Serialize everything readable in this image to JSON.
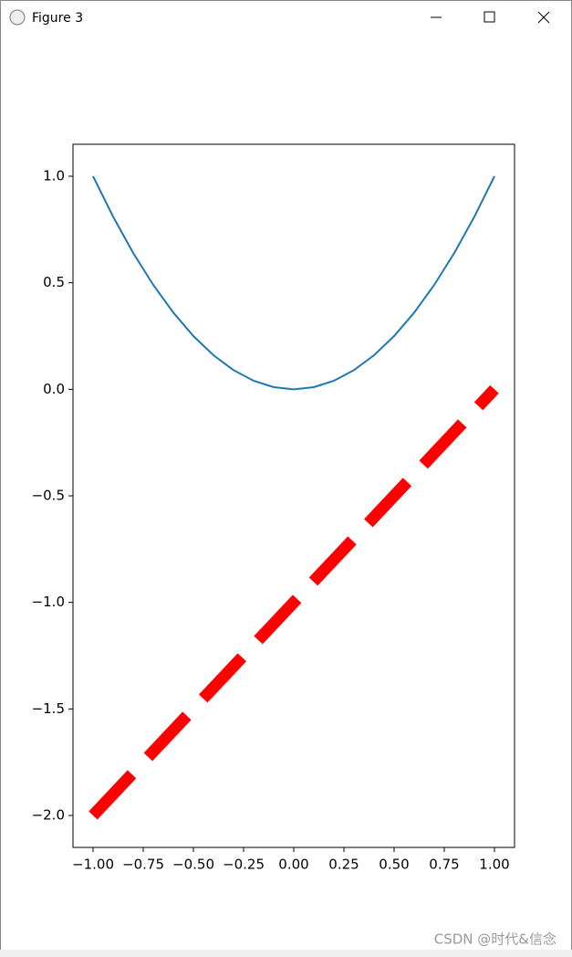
{
  "window": {
    "title": "Figure 3"
  },
  "chart_data": {
    "type": "line",
    "series": [
      {
        "color": "#1f77b4",
        "linestyle": "solid",
        "x": [
          -1,
          -0.9,
          -0.8,
          -0.7,
          -0.6,
          -0.5,
          -0.4,
          -0.3,
          -0.2,
          -0.1,
          0,
          0.1,
          0.2,
          0.3,
          0.4,
          0.5,
          0.6,
          0.7,
          0.8,
          0.9,
          1
        ],
        "values": [
          1,
          0.81,
          0.64,
          0.49,
          0.36,
          0.25,
          0.16,
          0.09,
          0.04,
          0.01,
          0,
          0.01,
          0.04,
          0.09,
          0.16,
          0.25,
          0.36,
          0.49,
          0.64,
          0.81,
          1
        ]
      },
      {
        "color": "#ff0000",
        "linestyle": "dashed",
        "x": [
          -1,
          1
        ],
        "values": [
          -2,
          0
        ]
      }
    ],
    "xlim": [
      -1.1,
      1.1
    ],
    "ylim": [
      -2.15,
      1.15
    ],
    "xticks": [
      {
        "value": -1,
        "label": "−1.00"
      },
      {
        "value": -0.75,
        "label": "−0.75"
      },
      {
        "value": -0.5,
        "label": "−0.50"
      },
      {
        "value": -0.25,
        "label": "−0.25"
      },
      {
        "value": 0,
        "label": "0.00"
      },
      {
        "value": 0.25,
        "label": "0.25"
      },
      {
        "value": 0.5,
        "label": "0.50"
      },
      {
        "value": 0.75,
        "label": "0.75"
      },
      {
        "value": 1,
        "label": "1.00"
      }
    ],
    "yticks": [
      {
        "value": -2,
        "label": "−2.0"
      },
      {
        "value": -1.5,
        "label": "−1.5"
      },
      {
        "value": -1,
        "label": "−1.0"
      },
      {
        "value": -0.5,
        "label": "−0.5"
      },
      {
        "value": 0,
        "label": "0.0"
      },
      {
        "value": 0.5,
        "label": "0.5"
      },
      {
        "value": 1,
        "label": "1.0"
      }
    ]
  },
  "watermark": "CSDN @时代&信念"
}
